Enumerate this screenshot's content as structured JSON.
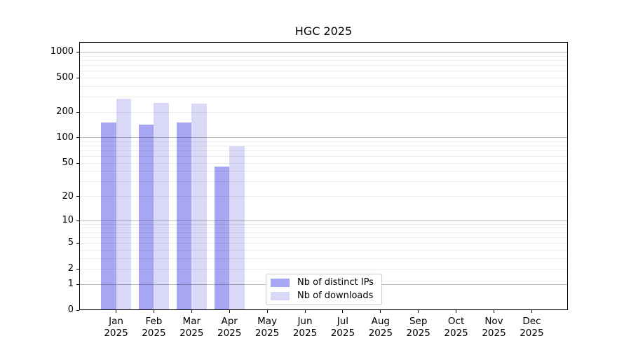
{
  "chart_data": {
    "type": "bar",
    "title": "HGC 2025",
    "categories": [
      [
        "Jan",
        "2025"
      ],
      [
        "Feb",
        "2025"
      ],
      [
        "Mar",
        "2025"
      ],
      [
        "Apr",
        "2025"
      ],
      [
        "May",
        "2025"
      ],
      [
        "Jun",
        "2025"
      ],
      [
        "Jul",
        "2025"
      ],
      [
        "Aug",
        "2025"
      ],
      [
        "Sep",
        "2025"
      ],
      [
        "Oct",
        "2025"
      ],
      [
        "Nov",
        "2025"
      ],
      [
        "Dec",
        "2025"
      ]
    ],
    "series": [
      {
        "key": "distinct_ips",
        "name": "Nb of distinct IPs",
        "color": "#a6a6f2",
        "values": [
          152,
          142,
          151,
          46,
          null,
          null,
          null,
          null,
          null,
          null,
          null,
          null
        ]
      },
      {
        "key": "downloads",
        "name": "Nb of downloads",
        "color": "#d9d9f7",
        "values": [
          285,
          256,
          250,
          79,
          null,
          null,
          null,
          null,
          null,
          null,
          null,
          null
        ]
      }
    ],
    "y_axis": {
      "ticks": [
        0,
        1,
        2,
        5,
        10,
        20,
        50,
        100,
        200,
        500,
        1000
      ],
      "scale": "log1p",
      "max": 1310
    },
    "grid": {
      "major_lines": [
        1,
        10,
        100,
        1000
      ],
      "minor_multiples": [
        2,
        3,
        4,
        5,
        6,
        7,
        8,
        9
      ],
      "minor_decades": [
        1,
        10,
        100
      ],
      "major_color": "rgba(0,0,0,0.27)",
      "minor_color": "rgba(0,0,0,0.075)"
    },
    "legend": {
      "position": "lower-center"
    }
  }
}
